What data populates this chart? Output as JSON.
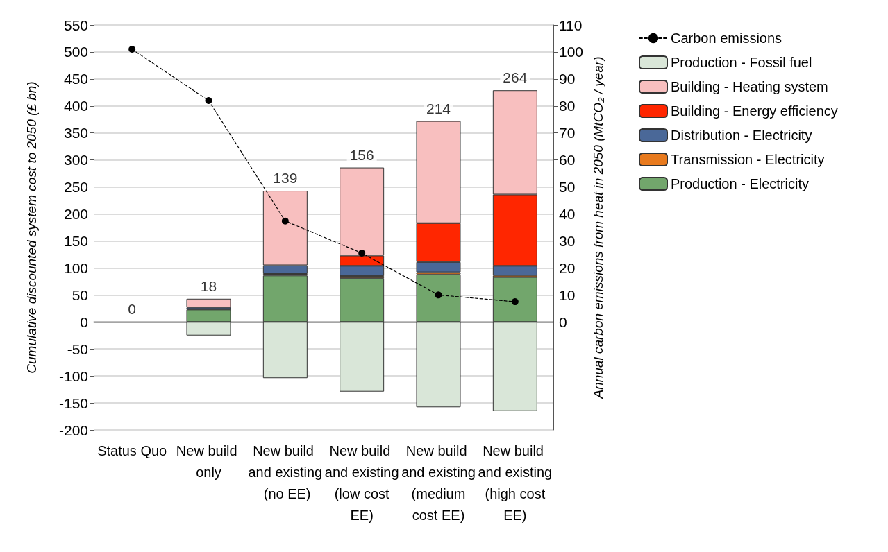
{
  "chart_data": {
    "type": "bar",
    "stacked": true,
    "ylabel": "Cumulative discounted system cost to 2050 (£ bn)",
    "y2label": "Annual carbon emissions from heat in 2050 (MtCO₂ / year)",
    "categories": [
      "Status Quo",
      "New build only",
      "New build and existing (no EE)",
      "New build and existing (low cost EE)",
      "New build and existing (medium cost EE)",
      "New build and existing (high cost EE)"
    ],
    "series": [
      {
        "name": "Production - Electricity",
        "color": "#72a66c",
        "values": [
          0,
          23,
          86,
          81,
          88,
          83
        ]
      },
      {
        "name": "Transmission - Electricity",
        "color": "#e87a1e",
        "values": [
          0,
          1,
          3,
          4,
          4,
          3
        ]
      },
      {
        "name": "Distribution - Electricity",
        "color": "#4a6898",
        "values": [
          0,
          3,
          16,
          19,
          19,
          18
        ]
      },
      {
        "name": "Building - Energy efficiency",
        "color": "#ff2600",
        "values": [
          0,
          0,
          0,
          19,
          72,
          132
        ]
      },
      {
        "name": "Building - Heating system",
        "color": "#f8bfbf",
        "values": [
          0,
          16,
          138,
          163,
          189,
          193
        ]
      },
      {
        "name": "Production - Fossil fuel",
        "color": "#d9e6d8",
        "values": [
          0,
          -25,
          -104,
          -129,
          -158,
          -165
        ]
      },
      {
        "name": "Carbon emissions",
        "type": "line",
        "axis": "y2",
        "color": "#000000",
        "marker": "circle",
        "line_style": "dashed",
        "values": [
          101,
          82,
          37.4,
          25.5,
          10,
          7.5
        ]
      }
    ],
    "totals": [
      "0",
      "18",
      "139",
      "156",
      "214",
      "264"
    ],
    "ylim": [
      -200,
      550
    ],
    "yticks": [
      -200,
      -150,
      -100,
      -50,
      0,
      50,
      100,
      150,
      200,
      250,
      300,
      350,
      400,
      450,
      500,
      550
    ],
    "y2lim": [
      -40,
      110
    ],
    "y2ticks": [
      0,
      10,
      20,
      30,
      40,
      50,
      60,
      70,
      80,
      90,
      100,
      110
    ],
    "grid": "y",
    "legend": "right"
  }
}
